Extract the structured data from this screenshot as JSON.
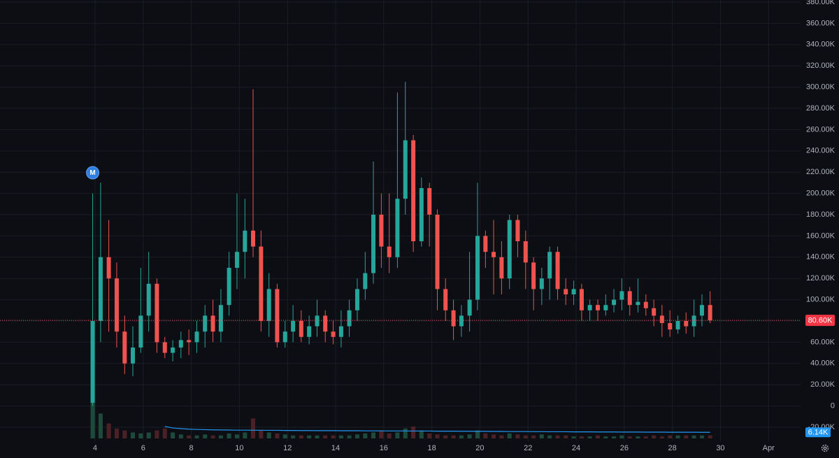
{
  "chart_data": {
    "type": "candlestick",
    "marker_label": "M",
    "price_label": "80.60K",
    "volume_ma_label": "6.14K",
    "up_color": "#26a69a",
    "down_color": "#ef5350",
    "volume_up_color": "#1e4a3c",
    "volume_down_color": "#4a2226",
    "volume_ma_color": "#2196f3",
    "grid": true,
    "xlim": [
      0.047,
      33.33
    ],
    "xticks": [
      4,
      6,
      8,
      10,
      12,
      14,
      16,
      18,
      20,
      22,
      24,
      26,
      28,
      30,
      {
        "value": 32,
        "label": "Apr"
      }
    ],
    "ylim": [
      -20000,
      380000
    ],
    "yticks": [
      {
        "value": -20000,
        "label": "-20.00K"
      },
      0,
      {
        "value": 20000,
        "label": "20.00K"
      },
      {
        "value": 40000,
        "label": "40.00K"
      },
      {
        "value": 60000,
        "label": "60.00K"
      },
      {
        "value": 80000,
        "label": "80.00K"
      },
      {
        "value": 100000,
        "label": "100.00K"
      },
      {
        "value": 120000,
        "label": "120.00K"
      },
      {
        "value": 140000,
        "label": "140.00K"
      },
      {
        "value": 160000,
        "label": "160.00K"
      },
      {
        "value": 180000,
        "label": "180.00K"
      },
      {
        "value": 200000,
        "label": "200.00K"
      },
      {
        "value": 220000,
        "label": "220.00K"
      },
      {
        "value": 240000,
        "label": "240.00K"
      },
      {
        "value": 260000,
        "label": "260.00K"
      },
      {
        "value": 280000,
        "label": "280.00K"
      },
      {
        "value": 300000,
        "label": "300.00K"
      },
      {
        "value": 320000,
        "label": "320.00K"
      },
      {
        "value": 340000,
        "label": "340.00K"
      },
      {
        "value": 360000,
        "label": "360.00K"
      },
      {
        "value": 380000,
        "label": "380.00K"
      }
    ],
    "volume_ylim": [
      0,
      120000
    ],
    "x": [
      3.9,
      4.23,
      4.57,
      4.9,
      5.23,
      5.57,
      5.9,
      6.23,
      6.57,
      6.9,
      7.23,
      7.57,
      7.9,
      8.23,
      8.57,
      8.9,
      9.23,
      9.57,
      9.9,
      10.23,
      10.57,
      10.9,
      11.23,
      11.57,
      11.9,
      12.23,
      12.57,
      12.9,
      13.23,
      13.57,
      13.9,
      14.23,
      14.57,
      14.9,
      15.23,
      15.57,
      15.9,
      16.23,
      16.57,
      16.9,
      17.23,
      17.57,
      17.9,
      18.23,
      18.57,
      18.9,
      19.23,
      19.57,
      19.9,
      20.23,
      20.57,
      20.9,
      21.23,
      21.57,
      21.9,
      22.23,
      22.57,
      22.9,
      23.23,
      23.57,
      23.9,
      24.23,
      24.57,
      24.9,
      25.23,
      25.57,
      25.9,
      26.23,
      26.57,
      26.9,
      27.23,
      27.57,
      27.9,
      28.23,
      28.57,
      28.9,
      29.23,
      29.57
    ],
    "open": [
      3000,
      80000,
      140000,
      120000,
      70000,
      40000,
      55000,
      85000,
      115000,
      60000,
      50000,
      55000,
      62000,
      60000,
      70000,
      85000,
      70000,
      95000,
      130000,
      145000,
      165000,
      150000,
      80000,
      110000,
      60000,
      70000,
      80000,
      65000,
      75000,
      85000,
      70000,
      65000,
      75000,
      90000,
      110000,
      125000,
      180000,
      150000,
      140000,
      195000,
      250000,
      155000,
      205000,
      180000,
      110000,
      90000,
      75000,
      85000,
      100000,
      160000,
      145000,
      140000,
      120000,
      175000,
      155000,
      135000,
      110000,
      120000,
      145000,
      110000,
      105000,
      110000,
      90000,
      95000,
      90000,
      95000,
      100000,
      108000,
      95000,
      98000,
      92000,
      85000,
      78000,
      72000,
      80000,
      75000,
      85000,
      95000
    ],
    "high": [
      200000,
      210000,
      175000,
      135000,
      85000,
      75000,
      130000,
      145000,
      120000,
      65000,
      62000,
      70000,
      72000,
      80000,
      95000,
      100000,
      110000,
      145000,
      200000,
      195000,
      298000,
      165000,
      125000,
      115000,
      80000,
      95000,
      90000,
      85000,
      100000,
      90000,
      80000,
      90000,
      100000,
      120000,
      145000,
      230000,
      200000,
      200000,
      295000,
      305000,
      255000,
      215000,
      210000,
      185000,
      120000,
      100000,
      95000,
      145000,
      210000,
      165000,
      175000,
      155000,
      180000,
      180000,
      165000,
      140000,
      130000,
      150000,
      150000,
      120000,
      118000,
      115000,
      100000,
      100000,
      105000,
      110000,
      120000,
      112000,
      120000,
      105000,
      100000,
      95000,
      90000,
      85000,
      88000,
      100000,
      105000,
      108000
    ],
    "low": [
      0,
      60000,
      70000,
      55000,
      30000,
      28000,
      50000,
      70000,
      50000,
      45000,
      42000,
      45000,
      48000,
      50000,
      55000,
      60000,
      60000,
      85000,
      110000,
      120000,
      140000,
      70000,
      65000,
      55000,
      55000,
      60000,
      60000,
      58000,
      65000,
      60000,
      58000,
      55000,
      65000,
      80000,
      100000,
      115000,
      130000,
      125000,
      130000,
      180000,
      145000,
      150000,
      150000,
      90000,
      80000,
      62000,
      65000,
      70000,
      90000,
      130000,
      105000,
      105000,
      110000,
      140000,
      110000,
      90000,
      95000,
      100000,
      100000,
      95000,
      95000,
      80000,
      80000,
      80000,
      85000,
      88000,
      90000,
      85000,
      88000,
      85000,
      75000,
      65000,
      65000,
      68000,
      68000,
      65000,
      75000,
      78000
    ],
    "close": [
      80000,
      140000,
      120000,
      70000,
      40000,
      55000,
      85000,
      115000,
      60000,
      50000,
      55000,
      62000,
      60000,
      70000,
      85000,
      70000,
      95000,
      130000,
      145000,
      165000,
      150000,
      80000,
      110000,
      60000,
      70000,
      80000,
      65000,
      75000,
      85000,
      70000,
      65000,
      75000,
      90000,
      110000,
      125000,
      180000,
      150000,
      140000,
      195000,
      250000,
      155000,
      205000,
      180000,
      110000,
      90000,
      75000,
      85000,
      100000,
      160000,
      145000,
      140000,
      120000,
      175000,
      155000,
      135000,
      110000,
      120000,
      145000,
      110000,
      105000,
      110000,
      90000,
      95000,
      90000,
      95000,
      100000,
      108000,
      95000,
      98000,
      92000,
      85000,
      78000,
      72000,
      80000,
      75000,
      85000,
      95000,
      80600
    ],
    "volume": [
      118000,
      25000,
      15000,
      10000,
      8000,
      6000,
      5000,
      6000,
      8000,
      10000,
      6000,
      4000,
      3000,
      3000,
      4000,
      3000,
      3000,
      5000,
      4000,
      6000,
      20000,
      8000,
      6000,
      5000,
      4000,
      3000,
      3000,
      3000,
      3000,
      3000,
      3000,
      3000,
      3000,
      4000,
      5000,
      6000,
      8000,
      5000,
      6000,
      10000,
      12000,
      8000,
      5000,
      4000,
      3000,
      3000,
      3000,
      4000,
      8000,
      5000,
      4000,
      3000,
      5000,
      4000,
      3000,
      3000,
      4000,
      3000,
      3000,
      3000,
      2000,
      2000,
      2000,
      3000,
      2000,
      2000,
      3000,
      2000,
      2000,
      2000,
      3000,
      2000,
      3000,
      3000,
      3000,
      3000,
      3000,
      3000
    ],
    "volume_ma": [
      null,
      null,
      null,
      null,
      null,
      null,
      null,
      null,
      null,
      12000,
      10500,
      9800,
      9300,
      9000,
      8800,
      8600,
      8500,
      8400,
      8300,
      8300,
      8200,
      8200,
      8100,
      8100,
      8000,
      8000,
      7900,
      7900,
      7800,
      7800,
      7800,
      7700,
      7700,
      7700,
      7600,
      7600,
      7600,
      7500,
      7500,
      7500,
      7400,
      7400,
      7400,
      7300,
      7300,
      7300,
      7200,
      7200,
      7100,
      7100,
      7000,
      7000,
      6900,
      6900,
      6900,
      6800,
      6800,
      6700,
      6700,
      6700,
      6600,
      6600,
      6600,
      6500,
      6500,
      6500,
      6400,
      6400,
      6400,
      6300,
      6300,
      6300,
      6200,
      6200,
      6200,
      6200,
      6150,
      6140
    ]
  }
}
